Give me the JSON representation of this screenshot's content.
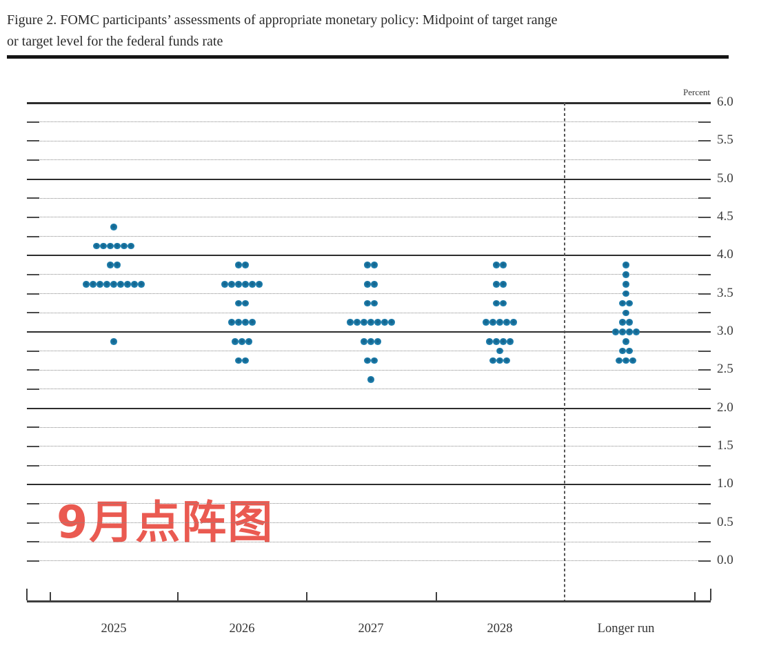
{
  "figure": {
    "title_line1": "Figure 2. FOMC participants’ assessments of appropriate monetary policy: Midpoint of target range",
    "title_line2": "or target level for the federal funds rate",
    "unit_label": "Percent",
    "annotation": {
      "text": "9月点阵图",
      "color": "#e8443a"
    }
  },
  "chart_data": {
    "type": "scatter",
    "title": "FOMC participants’ assessments of appropriate monetary policy: Midpoint of target range or target level for the federal funds rate",
    "ylabel": "Percent",
    "ylim": [
      0.0,
      6.0
    ],
    "y_tick_labels": [
      "6.0",
      "5.5",
      "5.0",
      "4.5",
      "4.0",
      "3.5",
      "3.0",
      "2.5",
      "2.0",
      "1.5",
      "1.0",
      "0.5",
      "0.0"
    ],
    "gridlines": {
      "solid_at": [
        6.0,
        5.0,
        4.0,
        3.0,
        2.0,
        1.0
      ],
      "dotted_step": 0.25,
      "zero_line_dotted": true
    },
    "legend_position": "none",
    "categories": [
      "2025",
      "2026",
      "2027",
      "2028",
      "Longer run"
    ],
    "dot_color": "#1b7aa9",
    "separator_before_category": "Longer run",
    "series": [
      {
        "category": "2025",
        "dots": [
          [
            4.375,
            1
          ],
          [
            4.125,
            6
          ],
          [
            3.875,
            2
          ],
          [
            3.625,
            9
          ],
          [
            2.875,
            1
          ]
        ]
      },
      {
        "category": "2026",
        "dots": [
          [
            3.875,
            2
          ],
          [
            3.625,
            6
          ],
          [
            3.375,
            2
          ],
          [
            3.125,
            4
          ],
          [
            2.875,
            3
          ],
          [
            2.625,
            2
          ]
        ]
      },
      {
        "category": "2027",
        "dots": [
          [
            3.875,
            2
          ],
          [
            3.625,
            2
          ],
          [
            3.375,
            2
          ],
          [
            3.125,
            7
          ],
          [
            2.875,
            3
          ],
          [
            2.625,
            2
          ],
          [
            2.375,
            1
          ]
        ]
      },
      {
        "category": "2028",
        "dots": [
          [
            3.875,
            2
          ],
          [
            3.625,
            2
          ],
          [
            3.375,
            2
          ],
          [
            3.125,
            5
          ],
          [
            2.875,
            4
          ],
          [
            2.75,
            1
          ],
          [
            2.625,
            3
          ]
        ]
      },
      {
        "category": "Longer run",
        "dots": [
          [
            3.875,
            1
          ],
          [
            3.75,
            1
          ],
          [
            3.625,
            1
          ],
          [
            3.5,
            1
          ],
          [
            3.375,
            2
          ],
          [
            3.25,
            1
          ],
          [
            3.125,
            2
          ],
          [
            3.0,
            4
          ],
          [
            2.875,
            1
          ],
          [
            2.75,
            2
          ],
          [
            2.625,
            3
          ]
        ]
      }
    ]
  }
}
